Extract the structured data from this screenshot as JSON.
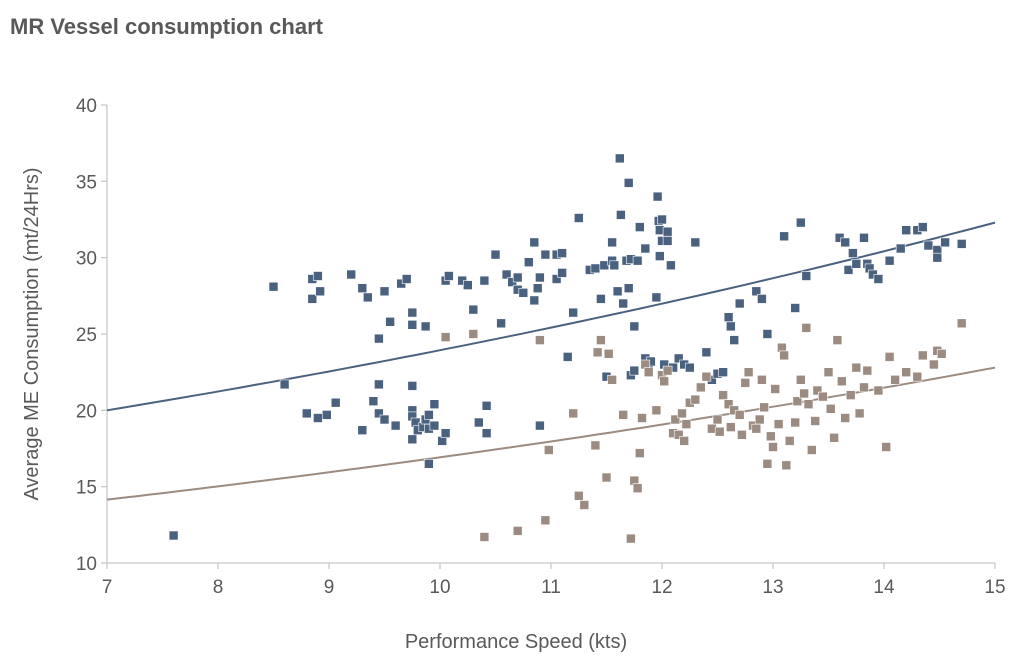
{
  "chart_data": {
    "type": "scatter",
    "title": "MR Vessel consumption chart",
    "xlabel": "Performance Speed (kts)",
    "ylabel": "Average ME Consumption (mt/24Hrs)",
    "xlim": [
      7,
      15
    ],
    "ylim": [
      10,
      40
    ],
    "xticks": [
      "7",
      "8",
      "9",
      "10",
      "11",
      "12",
      "13",
      "14",
      "15"
    ],
    "yticks": [
      "10",
      "15",
      "20",
      "25",
      "30",
      "35",
      "40"
    ],
    "grid": false,
    "legend": "none",
    "series": [
      {
        "name": "Series A (dark blue)",
        "color": "#4a6280",
        "marker": "square",
        "points": [
          [
            7.6,
            11.8
          ],
          [
            8.5,
            28.1
          ],
          [
            8.6,
            21.7
          ],
          [
            8.8,
            19.8
          ],
          [
            8.85,
            28.6
          ],
          [
            8.85,
            27.3
          ],
          [
            8.9,
            28.8
          ],
          [
            8.92,
            27.8
          ],
          [
            8.9,
            19.5
          ],
          [
            8.98,
            19.7
          ],
          [
            9.06,
            20.5
          ],
          [
            9.2,
            28.9
          ],
          [
            9.3,
            28.0
          ],
          [
            9.35,
            27.4
          ],
          [
            9.4,
            20.6
          ],
          [
            9.45,
            21.7
          ],
          [
            9.45,
            24.7
          ],
          [
            9.45,
            19.8
          ],
          [
            9.5,
            27.8
          ],
          [
            9.5,
            19.4
          ],
          [
            9.55,
            25.8
          ],
          [
            9.6,
            19.0
          ],
          [
            9.3,
            18.7
          ],
          [
            9.65,
            28.3
          ],
          [
            9.7,
            28.6
          ],
          [
            9.75,
            26.4
          ],
          [
            9.75,
            25.6
          ],
          [
            9.75,
            21.6
          ],
          [
            9.75,
            20.0
          ],
          [
            9.75,
            19.6
          ],
          [
            9.78,
            19.2
          ],
          [
            9.75,
            18.1
          ],
          [
            9.8,
            18.7
          ],
          [
            9.85,
            18.9
          ],
          [
            9.87,
            25.5
          ],
          [
            9.87,
            19.4
          ],
          [
            9.9,
            18.8
          ],
          [
            9.9,
            19.7
          ],
          [
            9.9,
            16.5
          ],
          [
            9.95,
            20.4
          ],
          [
            9.95,
            19.0
          ],
          [
            10.02,
            18.0
          ],
          [
            10.05,
            18.5
          ],
          [
            10.05,
            28.5
          ],
          [
            10.08,
            28.8
          ],
          [
            10.2,
            28.5
          ],
          [
            10.25,
            28.2
          ],
          [
            10.3,
            26.6
          ],
          [
            10.35,
            19.2
          ],
          [
            10.4,
            28.5
          ],
          [
            10.42,
            20.3
          ],
          [
            10.42,
            18.5
          ],
          [
            10.5,
            30.2
          ],
          [
            10.55,
            25.7
          ],
          [
            10.6,
            28.9
          ],
          [
            10.65,
            28.4
          ],
          [
            10.7,
            28.7
          ],
          [
            10.7,
            27.9
          ],
          [
            10.75,
            27.7
          ],
          [
            10.8,
            29.7
          ],
          [
            10.85,
            31.0
          ],
          [
            10.85,
            27.2
          ],
          [
            10.88,
            28.0
          ],
          [
            10.9,
            28.7
          ],
          [
            10.9,
            19.0
          ],
          [
            10.95,
            30.2
          ],
          [
            11.05,
            28.6
          ],
          [
            11.05,
            30.2
          ],
          [
            11.1,
            30.3
          ],
          [
            11.1,
            29.0
          ],
          [
            11.15,
            23.5
          ],
          [
            11.2,
            26.4
          ],
          [
            11.25,
            32.6
          ],
          [
            11.35,
            29.2
          ],
          [
            11.4,
            29.3
          ],
          [
            11.45,
            27.3
          ],
          [
            11.48,
            29.5
          ],
          [
            11.5,
            22.2
          ],
          [
            11.55,
            31.0
          ],
          [
            11.55,
            29.8
          ],
          [
            11.57,
            29.5
          ],
          [
            11.6,
            27.8
          ],
          [
            11.62,
            36.5
          ],
          [
            11.63,
            32.8
          ],
          [
            11.65,
            27.0
          ],
          [
            11.68,
            29.8
          ],
          [
            11.7,
            34.9
          ],
          [
            11.7,
            28.0
          ],
          [
            11.72,
            29.9
          ],
          [
            11.72,
            22.3
          ],
          [
            11.75,
            25.5
          ],
          [
            11.75,
            22.6
          ],
          [
            11.78,
            29.8
          ],
          [
            11.8,
            32.0
          ],
          [
            11.85,
            30.6
          ],
          [
            11.85,
            23.4
          ],
          [
            11.88,
            22.9
          ],
          [
            11.9,
            23.2
          ],
          [
            11.95,
            27.4
          ],
          [
            11.96,
            34.0
          ],
          [
            11.97,
            32.4
          ],
          [
            11.98,
            31.8
          ],
          [
            11.98,
            30.1
          ],
          [
            12.0,
            32.5
          ],
          [
            12.0,
            31.1
          ],
          [
            12.02,
            23.0
          ],
          [
            12.05,
            31.7
          ],
          [
            12.05,
            31.1
          ],
          [
            12.08,
            29.5
          ],
          [
            12.1,
            22.8
          ],
          [
            12.15,
            23.4
          ],
          [
            12.2,
            23.0
          ],
          [
            12.25,
            22.8
          ],
          [
            12.3,
            31.0
          ],
          [
            12.4,
            23.8
          ],
          [
            12.45,
            22.0
          ],
          [
            12.5,
            22.4
          ],
          [
            12.55,
            22.5
          ],
          [
            12.6,
            26.1
          ],
          [
            12.62,
            25.5
          ],
          [
            12.65,
            24.6
          ],
          [
            12.6,
            20.4
          ],
          [
            12.7,
            27.0
          ],
          [
            12.85,
            27.8
          ],
          [
            12.9,
            27.3
          ],
          [
            12.95,
            25.0
          ],
          [
            13.1,
            31.4
          ],
          [
            13.2,
            26.7
          ],
          [
            13.25,
            32.3
          ],
          [
            13.3,
            28.8
          ],
          [
            13.6,
            31.3
          ],
          [
            13.65,
            31.0
          ],
          [
            13.68,
            29.2
          ],
          [
            13.72,
            30.3
          ],
          [
            13.75,
            29.6
          ],
          [
            13.82,
            31.3
          ],
          [
            13.85,
            29.6
          ],
          [
            13.87,
            29.3
          ],
          [
            13.9,
            28.9
          ],
          [
            13.95,
            28.6
          ],
          [
            14.05,
            29.8
          ],
          [
            14.15,
            30.6
          ],
          [
            14.2,
            31.8
          ],
          [
            14.3,
            31.8
          ],
          [
            14.35,
            32.0
          ],
          [
            14.4,
            30.8
          ],
          [
            14.48,
            30.5
          ],
          [
            14.48,
            30.0
          ],
          [
            14.55,
            31.0
          ],
          [
            14.7,
            30.9
          ]
        ]
      },
      {
        "name": "Series B (taupe)",
        "color": "#9b8b80",
        "marker": "square",
        "points": [
          [
            10.05,
            24.8
          ],
          [
            10.3,
            25.0
          ],
          [
            10.4,
            11.7
          ],
          [
            10.7,
            12.1
          ],
          [
            10.9,
            24.6
          ],
          [
            10.95,
            12.8
          ],
          [
            10.98,
            17.4
          ],
          [
            11.2,
            19.8
          ],
          [
            11.25,
            14.4
          ],
          [
            11.3,
            13.8
          ],
          [
            11.4,
            17.7
          ],
          [
            11.42,
            23.8
          ],
          [
            11.45,
            24.6
          ],
          [
            11.5,
            15.6
          ],
          [
            11.52,
            23.7
          ],
          [
            11.55,
            22.0
          ],
          [
            11.65,
            19.7
          ],
          [
            11.72,
            11.6
          ],
          [
            11.75,
            15.4
          ],
          [
            11.78,
            14.9
          ],
          [
            11.8,
            17.2
          ],
          [
            11.82,
            19.5
          ],
          [
            11.85,
            23.0
          ],
          [
            11.88,
            22.5
          ],
          [
            11.95,
            20.0
          ],
          [
            12.0,
            22.3
          ],
          [
            12.02,
            21.9
          ],
          [
            12.05,
            22.6
          ],
          [
            12.1,
            18.5
          ],
          [
            12.12,
            19.4
          ],
          [
            12.15,
            18.4
          ],
          [
            12.18,
            19.8
          ],
          [
            12.2,
            18.0
          ],
          [
            12.22,
            19.1
          ],
          [
            12.25,
            20.5
          ],
          [
            12.3,
            20.7
          ],
          [
            12.35,
            21.5
          ],
          [
            12.4,
            22.2
          ],
          [
            12.45,
            18.8
          ],
          [
            12.5,
            19.4
          ],
          [
            12.52,
            18.6
          ],
          [
            12.55,
            21.0
          ],
          [
            12.6,
            20.4
          ],
          [
            12.62,
            18.9
          ],
          [
            12.65,
            20.0
          ],
          [
            12.7,
            19.7
          ],
          [
            12.72,
            18.4
          ],
          [
            12.75,
            21.8
          ],
          [
            12.78,
            22.5
          ],
          [
            12.82,
            19.0
          ],
          [
            12.85,
            18.8
          ],
          [
            12.88,
            19.4
          ],
          [
            12.9,
            22.0
          ],
          [
            12.92,
            20.2
          ],
          [
            12.95,
            16.5
          ],
          [
            12.98,
            18.3
          ],
          [
            13.0,
            17.6
          ],
          [
            13.02,
            21.4
          ],
          [
            13.05,
            19.1
          ],
          [
            13.08,
            24.1
          ],
          [
            13.1,
            23.6
          ],
          [
            13.12,
            16.4
          ],
          [
            13.15,
            18.0
          ],
          [
            13.2,
            19.2
          ],
          [
            13.22,
            20.6
          ],
          [
            13.25,
            22.0
          ],
          [
            13.28,
            21.1
          ],
          [
            13.3,
            25.4
          ],
          [
            13.32,
            20.4
          ],
          [
            13.35,
            17.4
          ],
          [
            13.38,
            19.3
          ],
          [
            13.4,
            21.3
          ],
          [
            13.45,
            20.9
          ],
          [
            13.5,
            22.5
          ],
          [
            13.52,
            20.1
          ],
          [
            13.55,
            18.2
          ],
          [
            13.58,
            24.6
          ],
          [
            13.62,
            21.9
          ],
          [
            13.65,
            19.5
          ],
          [
            13.7,
            21.0
          ],
          [
            13.75,
            22.8
          ],
          [
            13.78,
            19.8
          ],
          [
            13.82,
            21.5
          ],
          [
            13.85,
            22.6
          ],
          [
            13.95,
            21.3
          ],
          [
            14.02,
            17.6
          ],
          [
            14.05,
            23.5
          ],
          [
            14.1,
            22.0
          ],
          [
            14.2,
            22.5
          ],
          [
            14.3,
            22.2
          ],
          [
            14.35,
            23.6
          ],
          [
            14.45,
            23.0
          ],
          [
            14.48,
            23.9
          ],
          [
            14.52,
            23.7
          ],
          [
            14.7,
            25.7
          ]
        ]
      }
    ],
    "trendlines": [
      {
        "series": "Series A (dark blue)",
        "type": "exponential",
        "color": "#4a6280",
        "start": [
          7,
          20.0
        ],
        "end": [
          15,
          32.3
        ]
      },
      {
        "series": "Series B (taupe)",
        "type": "exponential",
        "color": "#9b8b80",
        "start": [
          7,
          14.15
        ],
        "end": [
          15,
          22.8
        ]
      }
    ]
  }
}
